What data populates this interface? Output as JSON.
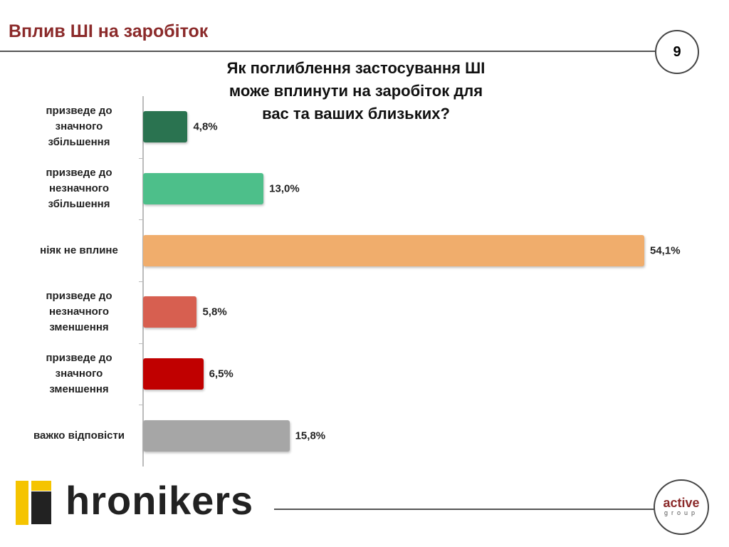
{
  "header": {
    "section": "Вплив ШІ на заробіток",
    "page_number": "9"
  },
  "chart_data": {
    "type": "bar",
    "orientation": "horizontal",
    "title": "Як поглиблення застосування ШІ може вплинути на заробіток для вас та ваших близьких?",
    "categories": [
      "призведе до значного збільшення",
      "призведе до незначного збільшення",
      "ніяк не вплине",
      "призведе до незначного зменшення",
      "призведе до значного зменшення",
      "важко відповісти"
    ],
    "values": [
      4.8,
      13.0,
      54.1,
      5.8,
      6.5,
      15.8
    ],
    "value_labels": [
      "4,8%",
      "13,0%",
      "54,1%",
      "5,8%",
      "6,5%",
      "15,8%"
    ],
    "colors": [
      "#2a7350",
      "#4dbf8a",
      "#f0ad6c",
      "#d75f50",
      "#c00000",
      "#a6a6a6"
    ]
  },
  "footer": {
    "brand": "hronikers",
    "partner": "active",
    "partner_sub": "group"
  }
}
